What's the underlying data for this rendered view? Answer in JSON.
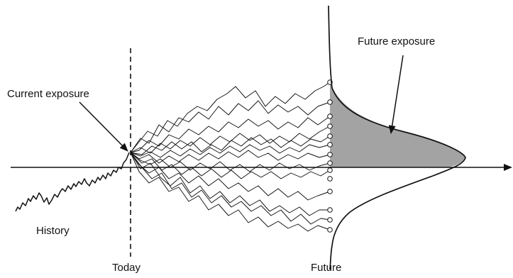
{
  "labels": {
    "current_exposure": "Current exposure",
    "future_exposure": "Future exposure",
    "history": "History",
    "today": "Today",
    "future": "Future"
  },
  "colors": {
    "ink": "#111111",
    "shaded_area": "#a3a3a3",
    "background": "#ffffff"
  }
}
